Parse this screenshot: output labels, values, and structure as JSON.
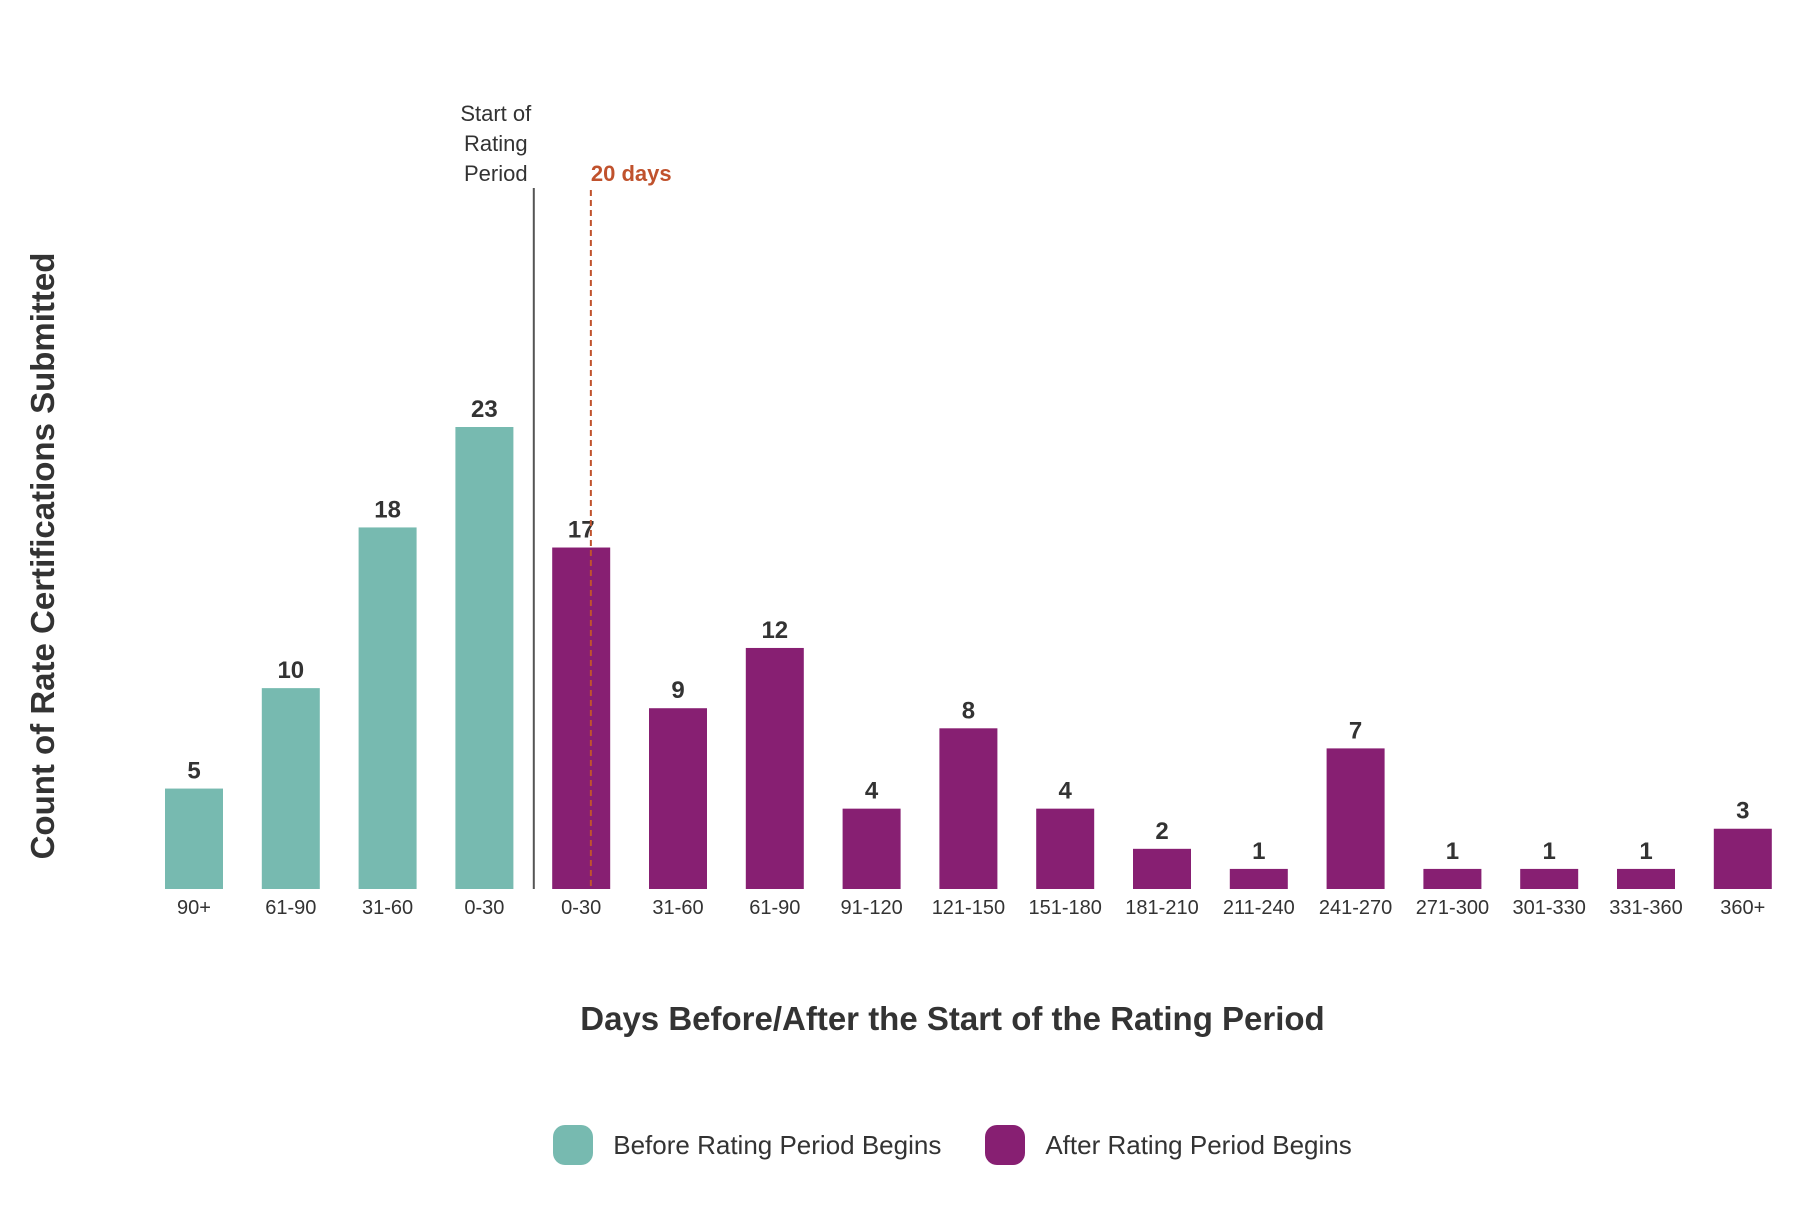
{
  "chart_data": {
    "type": "bar",
    "title": "",
    "xlabel": "Days Before/After the Start of the Rating Period",
    "ylabel": "Count of Rate Certifications Submitted",
    "ylim": [
      0,
      23
    ],
    "grid": false,
    "legend_position": "bottom-center",
    "categories": [
      "90+",
      "61-90",
      "31-60",
      "0-30",
      "0-30",
      "31-60",
      "61-90",
      "91-120",
      "121-150",
      "151-180",
      "181-210",
      "211-240",
      "241-270",
      "271-300",
      "301-330",
      "331-360",
      "360+"
    ],
    "values": [
      5,
      10,
      18,
      23,
      17,
      9,
      12,
      4,
      8,
      4,
      2,
      1,
      7,
      1,
      1,
      1,
      3
    ],
    "groups": [
      "before",
      "before",
      "before",
      "before",
      "after",
      "after",
      "after",
      "after",
      "after",
      "after",
      "after",
      "after",
      "after",
      "after",
      "after",
      "after",
      "after"
    ],
    "series": [
      {
        "name": "Before Rating Period Begins",
        "key": "before",
        "color": "#77bab0"
      },
      {
        "name": "After Rating Period Begins",
        "key": "after",
        "color": "#871f72"
      }
    ],
    "annotations": [
      {
        "label": "Start of Rating Period",
        "lines": [
          "Start of",
          "Rating",
          "Period"
        ],
        "position": "between 4th and 5th category",
        "style": "solid",
        "color": "#555555"
      },
      {
        "label": "20 days",
        "position": "at 20 days after start",
        "style": "dashed",
        "color": "#c0522d"
      }
    ]
  }
}
